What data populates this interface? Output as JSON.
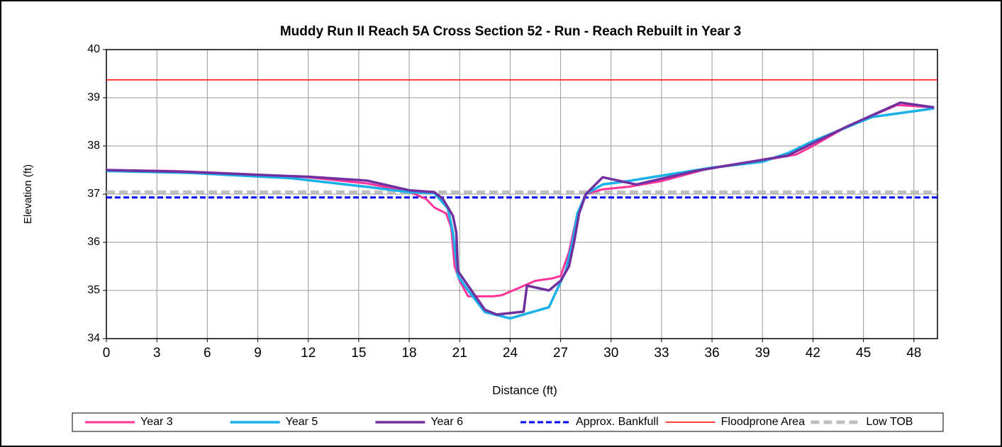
{
  "chart_data": {
    "type": "line",
    "title": "Muddy Run II Reach 5A Cross Section 52 - Run - Reach Rebuilt in Year 3",
    "xlabel": "Distance (ft)",
    "ylabel": "Elevation (ft)",
    "xlim": [
      0,
      49.4
    ],
    "ylim": [
      34,
      40
    ],
    "xticks": [
      0,
      3,
      6,
      9,
      12,
      15,
      18,
      21,
      24,
      27,
      30,
      33,
      36,
      39,
      42,
      45,
      48
    ],
    "yticks": [
      34,
      35,
      36,
      37,
      38,
      39,
      40
    ],
    "grid": true,
    "legend": "bottom",
    "series": [
      {
        "name": "Year 3",
        "color": "#ff3399",
        "width": 3,
        "dash": false,
        "x": [
          0,
          4,
          8,
          12,
          15.5,
          18,
          19,
          19.5,
          20.2,
          20.5,
          20.7,
          21,
          21.5,
          22,
          23,
          23.5,
          24.5,
          25.5,
          26.5,
          27,
          27.5,
          28,
          28.5,
          29.5,
          31,
          33,
          36,
          39,
          41,
          42,
          44,
          47,
          49.2
        ],
        "values": [
          37.5,
          37.48,
          37.42,
          37.35,
          37.22,
          37.05,
          36.9,
          36.72,
          36.6,
          36.3,
          35.5,
          35.2,
          34.88,
          34.88,
          34.88,
          34.9,
          35.05,
          35.2,
          35.25,
          35.3,
          35.8,
          36.6,
          37.0,
          37.1,
          37.15,
          37.27,
          37.55,
          37.7,
          37.82,
          38.0,
          38.4,
          38.85,
          38.8
        ]
      },
      {
        "name": "Year 5",
        "color": "#1ab0e8",
        "width": 3.5,
        "dash": false,
        "x": [
          0,
          5,
          11,
          15.5,
          18,
          19.5,
          20.3,
          20.6,
          20.9,
          21.5,
          22.5,
          24,
          26.3,
          27.3,
          27.7,
          28,
          28.5,
          29.5,
          31,
          36,
          39,
          40.5,
          42,
          45.5,
          49.2
        ],
        "values": [
          37.48,
          37.44,
          37.33,
          37.15,
          37.04,
          37.02,
          36.7,
          36.2,
          35.3,
          35.0,
          34.55,
          34.42,
          34.65,
          35.4,
          36.0,
          36.6,
          37.0,
          37.2,
          37.27,
          37.55,
          37.67,
          37.85,
          38.1,
          38.6,
          38.78
        ]
      },
      {
        "name": "Year 6",
        "color": "#7030a0",
        "width": 3.5,
        "dash": false,
        "x": [
          0,
          5,
          9,
          12,
          15.5,
          18,
          19.5,
          20,
          20.6,
          20.8,
          20.9,
          21.5,
          22.5,
          23.2,
          24.8,
          25,
          26.3,
          27,
          27.5,
          27.8,
          28.1,
          28.5,
          29.5,
          31.5,
          35,
          40.5,
          44,
          47.2,
          49.2
        ],
        "values": [
          37.5,
          37.46,
          37.4,
          37.36,
          37.28,
          37.08,
          37.04,
          36.9,
          36.55,
          36.2,
          35.4,
          35.1,
          34.6,
          34.5,
          34.56,
          35.1,
          35.0,
          35.2,
          35.5,
          36.0,
          36.6,
          37.0,
          37.35,
          37.2,
          37.48,
          37.8,
          38.4,
          38.9,
          38.8
        ]
      },
      {
        "name": "Approx. Bankfull",
        "color": "#0000ff",
        "width": 3,
        "dash": true,
        "x": [
          0,
          49.4
        ],
        "values": [
          36.93,
          36.93
        ]
      },
      {
        "name": "Floodprone Area",
        "color": "#ff0000",
        "width": 1.5,
        "dash": false,
        "x": [
          0,
          49.4
        ],
        "values": [
          39.37,
          39.37
        ]
      },
      {
        "name": "Low TOB",
        "color": "#bfbfbf",
        "width": 5,
        "dash": true,
        "x": [
          0,
          49.4
        ],
        "values": [
          37.04,
          37.04
        ]
      }
    ]
  }
}
